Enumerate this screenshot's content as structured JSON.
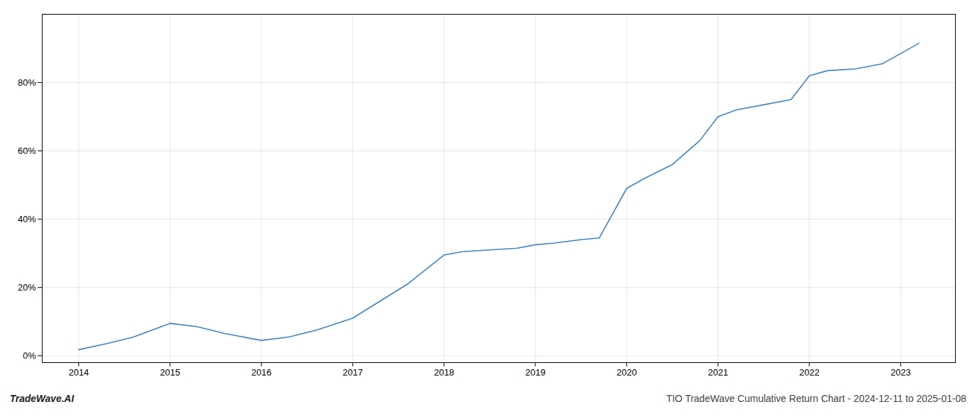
{
  "chart_data": {
    "type": "line",
    "x": [
      2014.0,
      2014.3,
      2014.6,
      2015.0,
      2015.3,
      2015.6,
      2016.0,
      2016.3,
      2016.6,
      2017.0,
      2017.3,
      2017.6,
      2018.0,
      2018.2,
      2018.5,
      2018.8,
      2019.0,
      2019.2,
      2019.5,
      2019.7,
      2020.0,
      2020.2,
      2020.5,
      2020.8,
      2021.0,
      2021.2,
      2021.5,
      2021.8,
      2022.0,
      2022.2,
      2022.5,
      2022.8,
      2023.0,
      2023.2
    ],
    "values": [
      0.018,
      0.035,
      0.055,
      0.095,
      0.085,
      0.065,
      0.045,
      0.055,
      0.075,
      0.11,
      0.16,
      0.21,
      0.295,
      0.305,
      0.31,
      0.315,
      0.325,
      0.33,
      0.34,
      0.345,
      0.49,
      0.52,
      0.56,
      0.63,
      0.7,
      0.72,
      0.735,
      0.75,
      0.82,
      0.835,
      0.84,
      0.855,
      0.885,
      0.915
    ],
    "color": "#3b82c4",
    "xlim": [
      2013.6,
      2023.6
    ],
    "ylim": [
      -0.02,
      1.0
    ],
    "xticks": [
      2014,
      2015,
      2016,
      2017,
      2018,
      2019,
      2020,
      2021,
      2022,
      2023
    ],
    "yticks": [
      {
        "value": 0.0,
        "label": "0%"
      },
      {
        "value": 0.2,
        "label": "20%"
      },
      {
        "value": 0.4,
        "label": "40%"
      },
      {
        "value": 0.6,
        "label": "60%"
      },
      {
        "value": 0.8,
        "label": "80%"
      }
    ],
    "grid": true,
    "annotations": [
      "TradeWave.AI",
      "TIO TradeWave Cumulative Return Chart - 2024-12-11 to 2025-01-08"
    ]
  }
}
